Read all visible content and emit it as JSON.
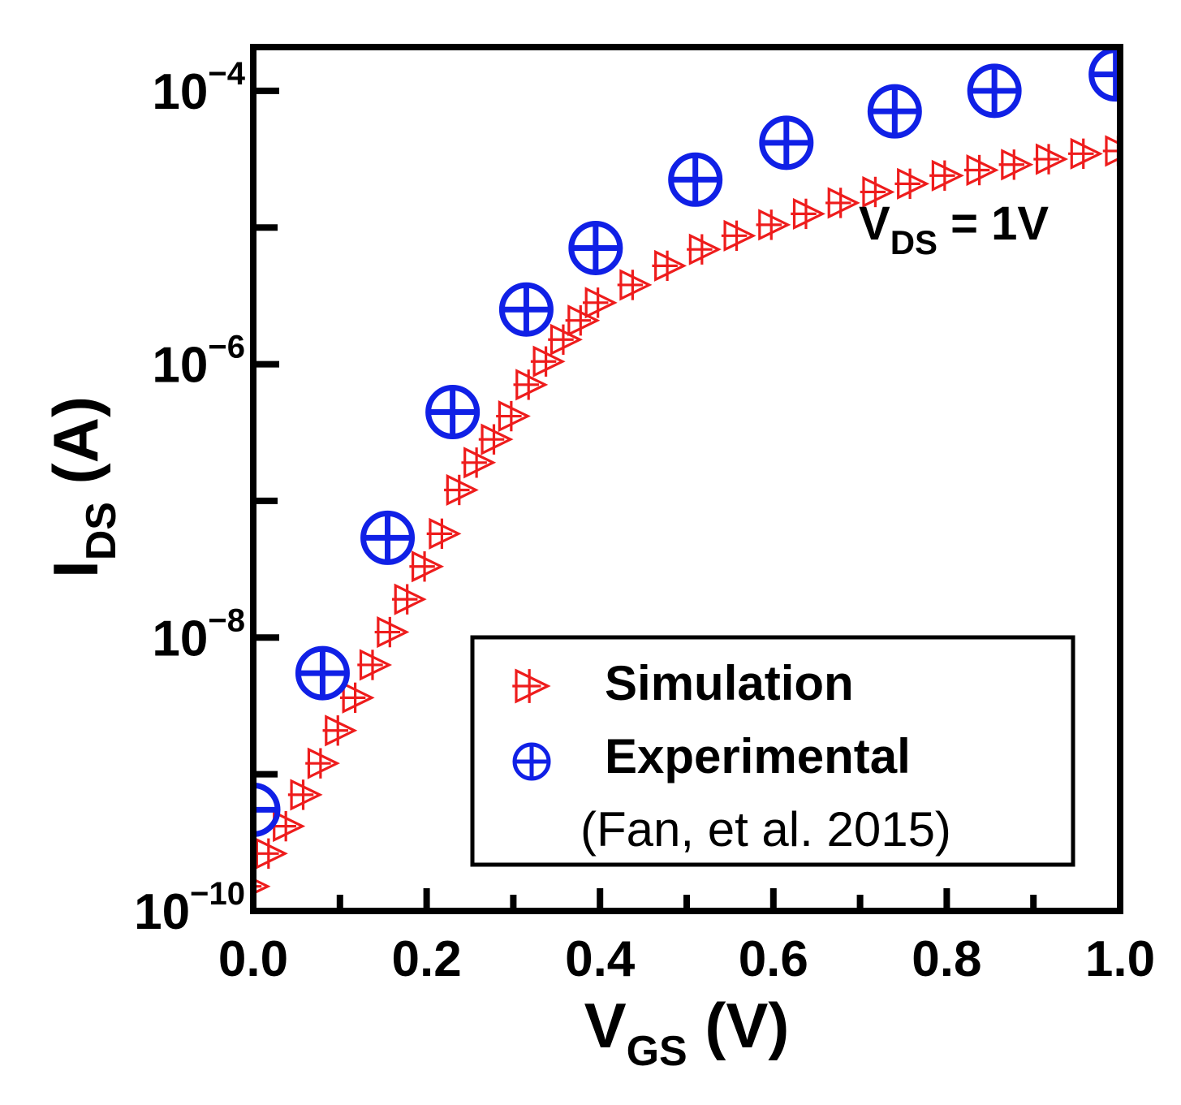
{
  "chart_data": {
    "type": "scatter",
    "title": "",
    "xlabel": {
      "main": "V",
      "sub": "GS",
      "unit": " (V)"
    },
    "ylabel": {
      "main": "I",
      "sub": "DS",
      "unit": " (A)"
    },
    "xlim": [
      0.0,
      1.0
    ],
    "ylim_log10": [
      -10,
      -3.68
    ],
    "yscale": "log",
    "x_ticks": [
      {
        "value": 0.0,
        "label": "0.0"
      },
      {
        "value": 0.2,
        "label": "0.2"
      },
      {
        "value": 0.4,
        "label": "0.4"
      },
      {
        "value": 0.6,
        "label": "0.6"
      },
      {
        "value": 0.8,
        "label": "0.8"
      },
      {
        "value": 1.0,
        "label": "1.0"
      }
    ],
    "y_ticks": [
      {
        "exp": -10,
        "base": "10",
        "sup": "−10"
      },
      {
        "exp": -8,
        "base": "10",
        "sup": "−8"
      },
      {
        "exp": -6,
        "base": "10",
        "sup": "−6"
      },
      {
        "exp": -4,
        "base": "10",
        "sup": "−4"
      }
    ],
    "annotation": {
      "main": "V",
      "sub": "DS",
      "rest": " = 1V"
    },
    "legend": {
      "position": "bottom-right",
      "entries": [
        "Simulation",
        "Experimental"
      ],
      "note": "(Fan, et al. 2015)"
    },
    "series": [
      {
        "name": "Simulation",
        "marker": "triangle-right-plus",
        "color": "#ee1c1c",
        "x": [
          0.0,
          0.02,
          0.04,
          0.06,
          0.08,
          0.1,
          0.12,
          0.14,
          0.16,
          0.18,
          0.2,
          0.22,
          0.24,
          0.26,
          0.28,
          0.3,
          0.32,
          0.34,
          0.36,
          0.38,
          0.4,
          0.44,
          0.48,
          0.52,
          0.56,
          0.6,
          0.64,
          0.68,
          0.72,
          0.76,
          0.8,
          0.84,
          0.88,
          0.92,
          0.96,
          1.0
        ],
        "y_log10": [
          -9.82,
          -9.58,
          -9.38,
          -9.15,
          -8.92,
          -8.68,
          -8.44,
          -8.2,
          -7.96,
          -7.72,
          -7.48,
          -7.24,
          -6.92,
          -6.72,
          -6.55,
          -6.38,
          -6.15,
          -5.98,
          -5.82,
          -5.68,
          -5.55,
          -5.42,
          -5.28,
          -5.16,
          -5.06,
          -4.98,
          -4.9,
          -4.82,
          -4.74,
          -4.68,
          -4.62,
          -4.58,
          -4.54,
          -4.5,
          -4.46,
          -4.44
        ]
      },
      {
        "name": "Experimental",
        "marker": "circle-plus",
        "color": "#1020e6",
        "x": [
          0.0,
          0.08,
          0.155,
          0.23,
          0.315,
          0.395,
          0.51,
          0.615,
          0.74,
          0.855,
          0.995
        ],
        "y_log10": [
          -9.26,
          -8.26,
          -7.27,
          -6.35,
          -5.6,
          -5.15,
          -4.65,
          -4.38,
          -4.15,
          -4.0,
          -3.88
        ]
      }
    ]
  }
}
